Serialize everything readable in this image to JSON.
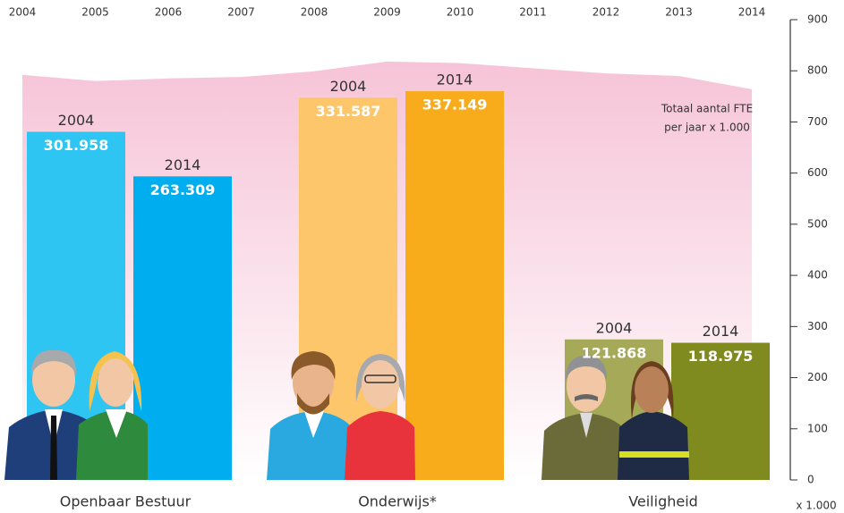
{
  "chart_data": [
    {
      "type": "area",
      "x": [
        2004,
        2005,
        2006,
        2007,
        2008,
        2009,
        2010,
        2011,
        2012,
        2013,
        2014
      ],
      "values": [
        792,
        780,
        785,
        788,
        799,
        818,
        815,
        805,
        795,
        790,
        764
      ],
      "color": "#f7c6d8",
      "ylim": [
        0,
        900
      ],
      "yticks": [
        0,
        100,
        200,
        300,
        400,
        500,
        600,
        700,
        800,
        900
      ],
      "y_unit": "x 1.000",
      "annotation": [
        "Totaal aantal FTE",
        "per jaar x 1.000"
      ]
    },
    {
      "type": "bar",
      "categories": [
        "Openbaar Bestuur",
        "Onderwijs*",
        "Veiligheid"
      ],
      "series": [
        {
          "name": "2004",
          "values": [
            301.958,
            331.587,
            121.868
          ],
          "colors": [
            "#2ec5f2",
            "#fec66a",
            "#a6aa58"
          ]
        },
        {
          "name": "2014",
          "values": [
            263.309,
            337.149,
            118.975
          ],
          "colors": [
            "#00aeef",
            "#f8ac1c",
            "#7f8b1f"
          ]
        }
      ]
    }
  ]
}
